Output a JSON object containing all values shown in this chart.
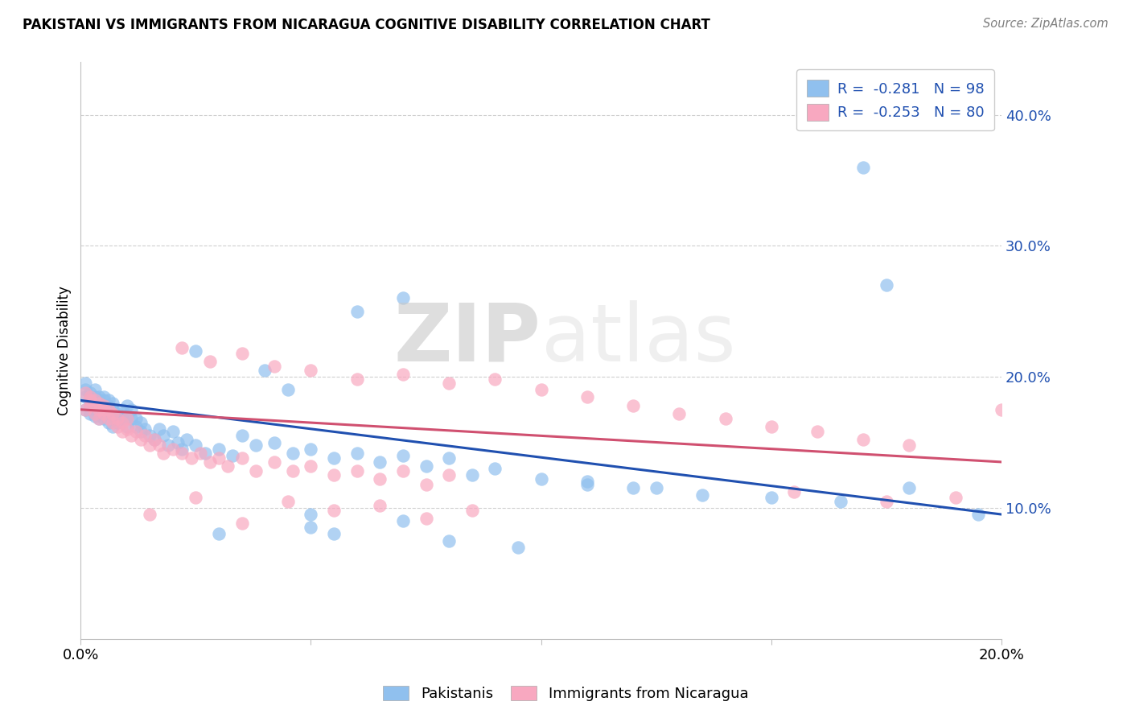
{
  "title": "PAKISTANI VS IMMIGRANTS FROM NICARAGUA COGNITIVE DISABILITY CORRELATION CHART",
  "source": "Source: ZipAtlas.com",
  "ylabel_label": "Cognitive Disability",
  "xlim": [
    0.0,
    0.2
  ],
  "ylim": [
    0.0,
    0.44
  ],
  "x_ticks": [
    0.0,
    0.05,
    0.1,
    0.15,
    0.2
  ],
  "y_ticks": [
    0.1,
    0.2,
    0.3,
    0.4
  ],
  "blue_R": -0.281,
  "blue_N": 98,
  "pink_R": -0.253,
  "pink_N": 80,
  "blue_color": "#90C0EE",
  "pink_color": "#F8A8C0",
  "blue_line_color": "#2050B0",
  "pink_line_color": "#D05070",
  "blue_scatter_x": [
    0.001,
    0.001,
    0.001,
    0.001,
    0.002,
    0.002,
    0.002,
    0.002,
    0.002,
    0.003,
    0.003,
    0.003,
    0.003,
    0.003,
    0.004,
    0.004,
    0.004,
    0.004,
    0.004,
    0.005,
    0.005,
    0.005,
    0.005,
    0.005,
    0.005,
    0.006,
    0.006,
    0.006,
    0.006,
    0.007,
    0.007,
    0.007,
    0.007,
    0.008,
    0.008,
    0.008,
    0.009,
    0.009,
    0.01,
    0.01,
    0.01,
    0.011,
    0.011,
    0.012,
    0.012,
    0.013,
    0.013,
    0.014,
    0.015,
    0.016,
    0.017,
    0.018,
    0.019,
    0.02,
    0.021,
    0.022,
    0.023,
    0.025,
    0.027,
    0.03,
    0.033,
    0.035,
    0.038,
    0.042,
    0.046,
    0.05,
    0.055,
    0.06,
    0.065,
    0.07,
    0.075,
    0.08,
    0.085,
    0.09,
    0.1,
    0.11,
    0.12,
    0.135,
    0.15,
    0.165,
    0.17,
    0.175,
    0.06,
    0.07,
    0.025,
    0.03,
    0.04,
    0.045,
    0.05,
    0.055,
    0.11,
    0.125,
    0.05,
    0.07,
    0.08,
    0.095,
    0.18,
    0.195
  ],
  "blue_scatter_y": [
    0.185,
    0.19,
    0.175,
    0.195,
    0.185,
    0.182,
    0.178,
    0.188,
    0.172,
    0.18,
    0.175,
    0.185,
    0.17,
    0.19,
    0.178,
    0.182,
    0.175,
    0.168,
    0.185,
    0.178,
    0.182,
    0.172,
    0.175,
    0.168,
    0.185,
    0.172,
    0.178,
    0.165,
    0.182,
    0.17,
    0.175,
    0.162,
    0.18,
    0.168,
    0.172,
    0.165,
    0.175,
    0.168,
    0.17,
    0.162,
    0.178,
    0.168,
    0.175,
    0.162,
    0.168,
    0.158,
    0.165,
    0.16,
    0.155,
    0.152,
    0.16,
    0.155,
    0.148,
    0.158,
    0.15,
    0.145,
    0.152,
    0.148,
    0.142,
    0.145,
    0.14,
    0.155,
    0.148,
    0.15,
    0.142,
    0.145,
    0.138,
    0.142,
    0.135,
    0.14,
    0.132,
    0.138,
    0.125,
    0.13,
    0.122,
    0.118,
    0.115,
    0.11,
    0.108,
    0.105,
    0.36,
    0.27,
    0.25,
    0.26,
    0.22,
    0.08,
    0.205,
    0.19,
    0.085,
    0.08,
    0.12,
    0.115,
    0.095,
    0.09,
    0.075,
    0.07,
    0.115,
    0.095
  ],
  "pink_scatter_x": [
    0.001,
    0.001,
    0.002,
    0.002,
    0.002,
    0.003,
    0.003,
    0.003,
    0.004,
    0.004,
    0.004,
    0.005,
    0.005,
    0.005,
    0.006,
    0.006,
    0.007,
    0.007,
    0.008,
    0.008,
    0.009,
    0.009,
    0.01,
    0.01,
    0.011,
    0.012,
    0.013,
    0.014,
    0.015,
    0.016,
    0.017,
    0.018,
    0.02,
    0.022,
    0.024,
    0.026,
    0.028,
    0.03,
    0.032,
    0.035,
    0.038,
    0.042,
    0.046,
    0.05,
    0.055,
    0.06,
    0.065,
    0.07,
    0.075,
    0.08,
    0.022,
    0.028,
    0.035,
    0.042,
    0.05,
    0.06,
    0.07,
    0.08,
    0.09,
    0.1,
    0.11,
    0.12,
    0.13,
    0.14,
    0.15,
    0.16,
    0.17,
    0.18,
    0.19,
    0.2,
    0.015,
    0.025,
    0.035,
    0.045,
    0.055,
    0.065,
    0.075,
    0.085,
    0.155,
    0.175
  ],
  "pink_scatter_y": [
    0.188,
    0.175,
    0.182,
    0.178,
    0.185,
    0.178,
    0.172,
    0.182,
    0.175,
    0.18,
    0.168,
    0.175,
    0.172,
    0.178,
    0.168,
    0.175,
    0.165,
    0.172,
    0.162,
    0.168,
    0.158,
    0.165,
    0.16,
    0.168,
    0.155,
    0.158,
    0.152,
    0.155,
    0.148,
    0.152,
    0.148,
    0.142,
    0.145,
    0.142,
    0.138,
    0.142,
    0.135,
    0.138,
    0.132,
    0.138,
    0.128,
    0.135,
    0.128,
    0.132,
    0.125,
    0.128,
    0.122,
    0.128,
    0.118,
    0.125,
    0.222,
    0.212,
    0.218,
    0.208,
    0.205,
    0.198,
    0.202,
    0.195,
    0.198,
    0.19,
    0.185,
    0.178,
    0.172,
    0.168,
    0.162,
    0.158,
    0.152,
    0.148,
    0.108,
    0.175,
    0.095,
    0.108,
    0.088,
    0.105,
    0.098,
    0.102,
    0.092,
    0.098,
    0.112,
    0.105
  ]
}
